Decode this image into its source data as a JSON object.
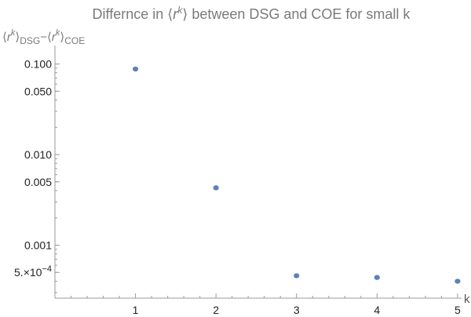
{
  "chart_data": {
    "type": "scatter",
    "title_parts": {
      "pre": "Differnce in ⟨",
      "var": "r",
      "exp": "k",
      "post": "⟩ between DSG and COE for small k"
    },
    "ylabel_parts": {
      "open1": "⟨",
      "var1": "r",
      "exp1": "k",
      "close1": "⟩",
      "sub1": "DSG",
      "minus": "−⟨",
      "var2": "r",
      "exp2": "k",
      "close2": "⟩",
      "sub2": "COE"
    },
    "xlabel": "k",
    "y_scale": "log",
    "xlim": [
      0,
      5.05
    ],
    "ylim": [
      0.00026,
      0.16
    ],
    "x_ticks": [
      1,
      2,
      3,
      4,
      5
    ],
    "y_ticks_major": [
      {
        "value": 0.1,
        "label": "0.100"
      },
      {
        "value": 0.05,
        "label": "0.050"
      },
      {
        "value": 0.01,
        "label": "0.010"
      },
      {
        "value": 0.005,
        "label": "0.005"
      },
      {
        "value": 0.001,
        "label": "0.001"
      },
      {
        "value": 0.0005,
        "label": "5.×10",
        "exp": "−4"
      }
    ],
    "series": [
      {
        "x": [
          1,
          2,
          3,
          4,
          5
        ],
        "y": [
          0.088,
          0.0043,
          0.00046,
          0.00044,
          0.0004
        ]
      }
    ],
    "marker_color": "#5e81b5",
    "axis_color": "#9a9a9a"
  }
}
